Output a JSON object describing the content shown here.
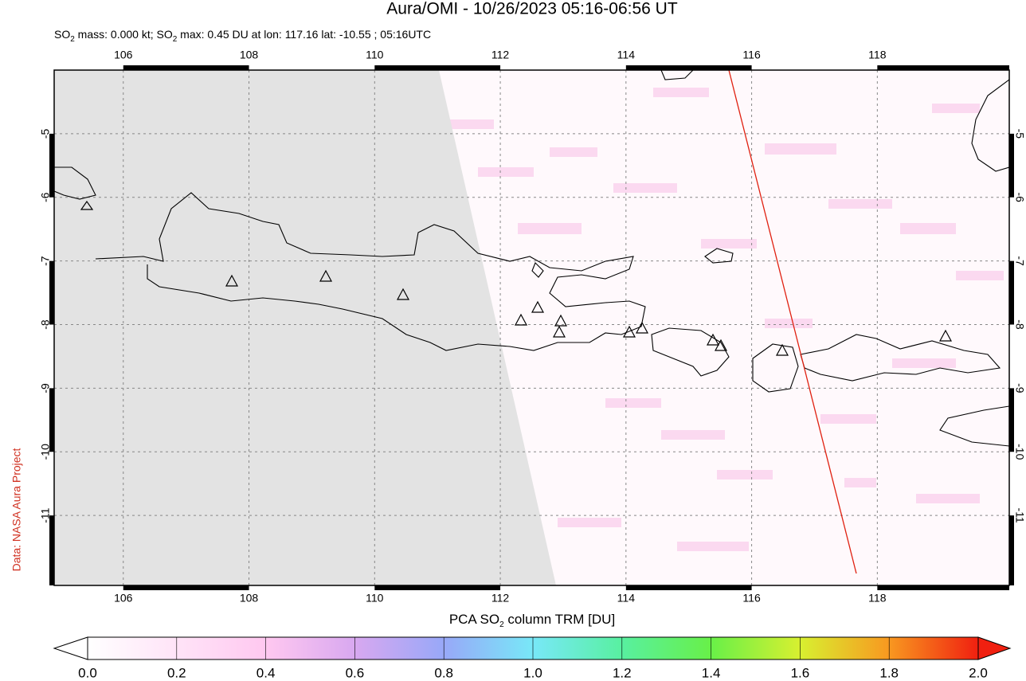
{
  "header": {
    "title": "Aura/OMI - 10/26/2023 05:16-06:56 UT",
    "subtitle_parts": [
      "SO",
      "2",
      " mass: 0.000 kt; SO",
      "2",
      " max: 0.45 DU at lon: 117.16 lat: -10.55 ; 05:16UTC"
    ]
  },
  "map": {
    "xlim": [
      104.9,
      120.1
    ],
    "ylim": [
      -12.1,
      -4
    ],
    "xticks": [
      106,
      108,
      110,
      112,
      114,
      116,
      118
    ],
    "yticks": [
      -5,
      -6,
      -7,
      -8,
      -9,
      -10,
      -11
    ],
    "grid": true
  },
  "colorbar": {
    "label_parts": [
      "PCA SO",
      "2",
      " column TRM [DU]"
    ],
    "lim": [
      0,
      2
    ],
    "ticks": [
      {
        "value": 0,
        "label": "0.0"
      },
      {
        "value": 0.2,
        "label": "0.2"
      },
      {
        "value": 0.4,
        "label": "0.4"
      },
      {
        "value": 0.6,
        "label": "0.6"
      },
      {
        "value": 0.8,
        "label": "0.8"
      },
      {
        "value": 1,
        "label": "1.0"
      },
      {
        "value": 1.2,
        "label": "1.2"
      },
      {
        "value": 1.4,
        "label": "1.4"
      },
      {
        "value": 1.6,
        "label": "1.6"
      },
      {
        "value": 1.8,
        "label": "1.8"
      },
      {
        "value": 2,
        "label": "2.0"
      }
    ]
  },
  "credit": "Data: NASA Aura Project"
}
